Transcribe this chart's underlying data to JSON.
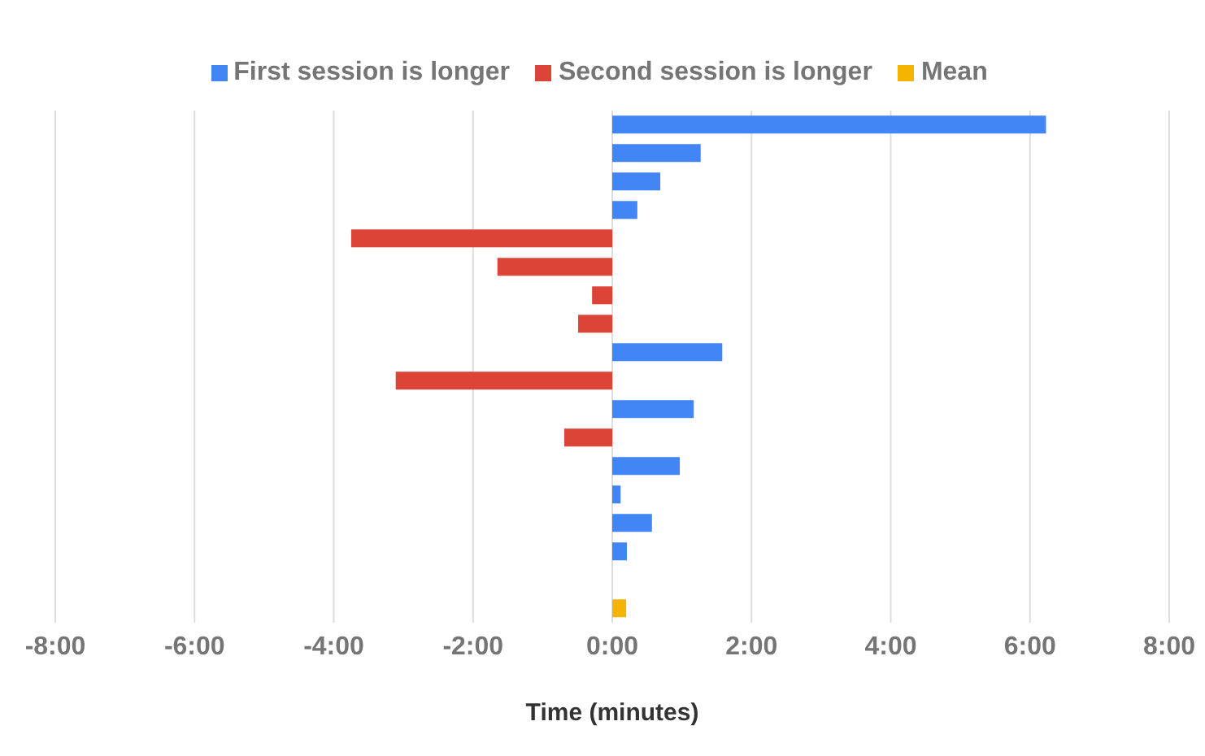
{
  "chart_data": {
    "type": "bar",
    "orientation": "horizontal",
    "stacked": true,
    "categories": [
      null,
      null,
      null,
      null,
      null,
      null,
      null,
      null,
      null,
      null,
      null,
      null,
      null,
      null,
      null,
      null,
      null,
      null
    ],
    "series": [
      {
        "name": "First session is longer",
        "color": "#4285f4",
        "values": [
          6.23,
          1.27,
          0.69,
          0.36,
          null,
          null,
          null,
          null,
          1.58,
          null,
          1.17,
          null,
          0.97,
          0.12,
          0.57,
          0.21,
          null,
          null
        ]
      },
      {
        "name": "Second session is longer",
        "color": "#db4437",
        "values": [
          null,
          null,
          null,
          null,
          -3.75,
          -1.65,
          -0.29,
          -0.49,
          null,
          -3.11,
          null,
          -0.69,
          null,
          null,
          null,
          null,
          null,
          null
        ]
      },
      {
        "name": "Mean",
        "color": "#f4b400",
        "values": [
          null,
          null,
          null,
          null,
          null,
          null,
          null,
          null,
          null,
          null,
          null,
          null,
          null,
          null,
          null,
          null,
          null,
          0.2
        ]
      }
    ],
    "xlabel": "Time (minutes)",
    "xlim": [
      -8,
      8
    ],
    "xticks": [
      {
        "value": -8,
        "label": "-8:00"
      },
      {
        "value": -6,
        "label": "-6:00"
      },
      {
        "value": -4,
        "label": "-4:00"
      },
      {
        "value": -2,
        "label": "-2:00"
      },
      {
        "value": 0,
        "label": "0:00"
      },
      {
        "value": 2,
        "label": "2:00"
      },
      {
        "value": 4,
        "label": "4:00"
      },
      {
        "value": 6,
        "label": "6:00"
      },
      {
        "value": 8,
        "label": "8:00"
      }
    ],
    "grid": "x",
    "legend": "top",
    "tick_labels": "x"
  }
}
